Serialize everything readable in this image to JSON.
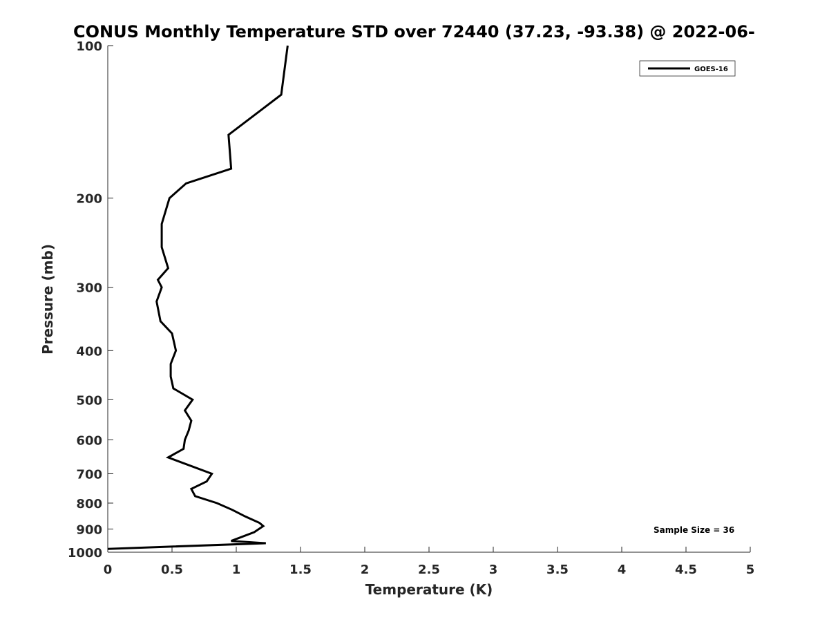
{
  "chart_data": {
    "type": "line",
    "title": "CONUS Monthly Temperature STD over 72440 (37.23, -93.38) @ 2022-06-",
    "xlabel": "Temperature (K)",
    "ylabel": "Pressure (mb)",
    "xlim": [
      0,
      5
    ],
    "ylim": [
      1000,
      100
    ],
    "yscale": "log",
    "y_reversed": true,
    "grid": false,
    "legend_position": "top-right",
    "x_ticks": [
      {
        "value": 0,
        "label": "0"
      },
      {
        "value": 0.5,
        "label": "0.5"
      },
      {
        "value": 1,
        "label": "1"
      },
      {
        "value": 1.5,
        "label": "1.5"
      },
      {
        "value": 2,
        "label": "2"
      },
      {
        "value": 2.5,
        "label": "2.5"
      },
      {
        "value": 3,
        "label": "3"
      },
      {
        "value": 3.5,
        "label": "3.5"
      },
      {
        "value": 4,
        "label": "4"
      },
      {
        "value": 4.5,
        "label": "4.5"
      },
      {
        "value": 5,
        "label": "5"
      }
    ],
    "y_ticks": [
      {
        "value": 100,
        "label": "100"
      },
      {
        "value": 200,
        "label": "200"
      },
      {
        "value": 300,
        "label": "300"
      },
      {
        "value": 400,
        "label": "400"
      },
      {
        "value": 500,
        "label": "500"
      },
      {
        "value": 600,
        "label": "600"
      },
      {
        "value": 700,
        "label": "700"
      },
      {
        "value": 800,
        "label": "800"
      },
      {
        "value": 900,
        "label": "900"
      },
      {
        "value": 1000,
        "label": "1000"
      }
    ],
    "series": [
      {
        "name": "GOES-16",
        "color": "#000000",
        "points": [
          {
            "x": 1.4,
            "y": 100
          },
          {
            "x": 1.35,
            "y": 125
          },
          {
            "x": 0.94,
            "y": 150
          },
          {
            "x": 0.96,
            "y": 175
          },
          {
            "x": 0.61,
            "y": 187
          },
          {
            "x": 0.48,
            "y": 200
          },
          {
            "x": 0.42,
            "y": 225
          },
          {
            "x": 0.42,
            "y": 250
          },
          {
            "x": 0.47,
            "y": 275
          },
          {
            "x": 0.39,
            "y": 290
          },
          {
            "x": 0.42,
            "y": 300
          },
          {
            "x": 0.38,
            "y": 320
          },
          {
            "x": 0.41,
            "y": 350
          },
          {
            "x": 0.5,
            "y": 370
          },
          {
            "x": 0.53,
            "y": 400
          },
          {
            "x": 0.49,
            "y": 425
          },
          {
            "x": 0.49,
            "y": 450
          },
          {
            "x": 0.51,
            "y": 475
          },
          {
            "x": 0.66,
            "y": 500
          },
          {
            "x": 0.6,
            "y": 525
          },
          {
            "x": 0.65,
            "y": 550
          },
          {
            "x": 0.63,
            "y": 575
          },
          {
            "x": 0.6,
            "y": 600
          },
          {
            "x": 0.59,
            "y": 625
          },
          {
            "x": 0.47,
            "y": 650
          },
          {
            "x": 0.81,
            "y": 700
          },
          {
            "x": 0.77,
            "y": 725
          },
          {
            "x": 0.65,
            "y": 750
          },
          {
            "x": 0.68,
            "y": 775
          },
          {
            "x": 0.85,
            "y": 800
          },
          {
            "x": 0.97,
            "y": 825
          },
          {
            "x": 1.07,
            "y": 850
          },
          {
            "x": 1.18,
            "y": 875
          },
          {
            "x": 1.21,
            "y": 888
          },
          {
            "x": 1.14,
            "y": 913
          },
          {
            "x": 0.96,
            "y": 950
          },
          {
            "x": 1.23,
            "y": 960
          },
          {
            "x": 0.0,
            "y": 985
          }
        ]
      }
    ],
    "annotations": [
      {
        "text": "Sample Size = 36",
        "position": "bottom-right"
      }
    ]
  }
}
